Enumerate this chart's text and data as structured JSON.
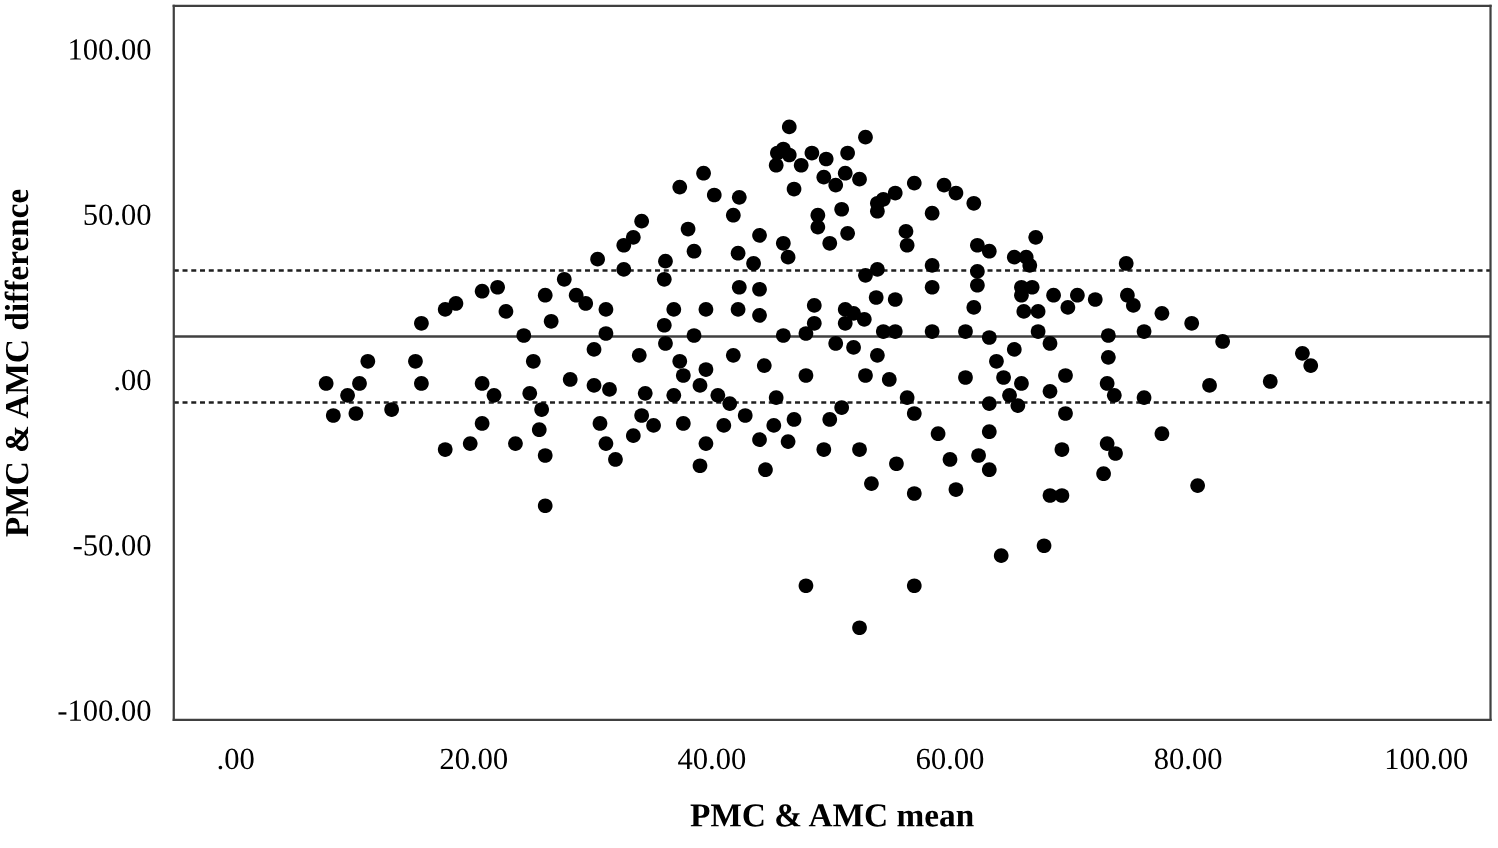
{
  "chart_data": {
    "type": "scatter",
    "xlabel": "PMC & AMC mean",
    "ylabel": "PMC & AMC difference",
    "xlim": [
      -5.2,
      105.4
    ],
    "ylim": [
      -103,
      113
    ],
    "xticks": [
      {
        "value": 0,
        "label": ".00"
      },
      {
        "value": 20,
        "label": "20.00"
      },
      {
        "value": 40,
        "label": "40.00"
      },
      {
        "value": 60,
        "label": "60.00"
      },
      {
        "value": 80,
        "label": "80.00"
      },
      {
        "value": 100,
        "label": "100.00"
      }
    ],
    "yticks": [
      {
        "value": -100,
        "label": "-100.00"
      },
      {
        "value": -50,
        "label": "-50.00"
      },
      {
        "value": 0,
        "label": ".00"
      },
      {
        "value": 50,
        "label": "50.00"
      },
      {
        "value": 100,
        "label": "100.00"
      }
    ],
    "grid": false,
    "marker": "circle",
    "ref_lines": [
      {
        "axis": "y",
        "value": 13,
        "label": null,
        "color": "#404040",
        "line_style": "solid"
      },
      {
        "axis": "y",
        "value": 33,
        "label": null,
        "color": "#202020",
        "line_style": "dotted"
      },
      {
        "axis": "y",
        "value": -7,
        "label": null,
        "color": "#202020",
        "line_style": "dotted"
      }
    ],
    "series": [
      {
        "color": "#000000",
        "x": [
          15.6,
          11.1,
          15.1,
          17.6,
          18.5,
          20.7,
          22.0,
          22.7,
          24.2,
          25.0,
          26.0,
          27.6,
          26.5,
          30.4,
          32.6,
          34.1,
          37.3,
          39.3,
          40.2,
          42.3,
          41.8,
          38.0,
          38.5,
          33.4,
          36.1,
          36.0,
          32.6,
          44.0,
          46.0,
          45.4,
          45.5,
          42.2,
          43.5,
          42.3,
          44.0,
          39.5,
          42.2,
          44.0,
          46.0,
          41.8,
          44.4,
          36.8,
          36.0,
          36.1,
          38.5,
          39.5,
          37.3,
          33.9,
          30.1,
          31.1,
          29.4,
          28.6,
          31.1,
          7.6,
          9.4,
          10.4,
          8.2,
          10.1,
          13.1,
          15.6,
          17.6,
          19.7,
          20.7,
          20.7,
          21.7,
          23.5,
          24.7,
          25.5,
          26.0,
          25.7,
          26.0,
          28.1,
          30.1,
          31.4,
          30.6,
          31.1,
          31.9,
          33.4,
          34.4,
          34.1,
          35.1,
          37.6,
          36.8,
          37.6,
          39.0,
          39.5,
          39.0,
          40.5,
          41.5,
          41.0,
          42.8,
          44.0,
          44.5,
          45.4,
          45.2,
          46.4,
          47.9,
          52.9,
          54.9,
          61.3,
          64.5,
          66.0,
          68.4,
          69.7,
          73.2,
          73.8,
          76.3,
          81.8,
          86.9,
          56.4,
          57.0,
          63.3,
          65.0,
          65.7,
          69.7,
          46.9,
          49.9,
          50.9,
          49.4,
          52.4,
          55.5,
          59.0,
          60.0,
          62.4,
          63.3,
          63.3,
          69.4,
          73.2,
          73.9,
          72.9,
          77.8,
          53.4,
          57.0,
          60.5,
          68.4,
          69.4,
          80.8,
          64.3,
          67.9,
          47.9,
          57.0,
          52.4,
          46.5,
          46.0,
          46.5,
          48.4,
          49.6,
          51.4,
          47.5,
          49.4,
          51.2,
          52.4,
          50.4,
          46.9,
          52.9,
          53.9,
          54.4,
          55.4,
          53.9,
          48.9,
          48.9,
          50.9,
          51.4,
          49.9,
          56.3,
          56.4,
          57.0,
          58.5,
          59.5,
          60.5,
          62.0,
          62.3,
          63.3,
          65.4,
          66.4,
          66.7,
          67.2,
          46.4,
          52.9,
          53.9,
          58.5,
          62.3,
          62.3,
          58.5,
          66.0,
          66.9,
          66.0,
          68.7,
          70.7,
          72.2,
          74.9,
          75.4,
          74.8,
          69.9,
          66.2,
          67.4,
          62.0,
          55.4,
          53.8,
          48.6,
          51.2,
          51.9,
          52.8,
          48.6,
          51.2,
          54.4,
          55.4,
          58.5,
          61.3,
          63.3,
          67.4,
          68.4,
          47.9,
          50.4,
          51.9,
          53.9,
          63.9,
          65.4,
          77.8,
          80.3,
          82.9,
          76.3,
          73.3,
          73.3,
          89.6,
          90.3
        ],
        "values": [
          17.0,
          5.5,
          5.5,
          21.2,
          23.0,
          26.7,
          27.9,
          20.6,
          13.3,
          5.5,
          25.5,
          30.3,
          17.6,
          36.4,
          40.6,
          47.9,
          58.2,
          62.4,
          55.8,
          55.1,
          49.7,
          45.5,
          38.8,
          43.0,
          35.8,
          30.3,
          33.3,
          43.6,
          41.2,
          64.8,
          68.5,
          38.2,
          35.1,
          27.9,
          27.3,
          21.2,
          21.2,
          19.4,
          13.3,
          7.3,
          4.2,
          21.2,
          16.4,
          10.9,
          13.3,
          3.0,
          5.5,
          7.3,
          9.1,
          21.2,
          23.0,
          25.5,
          13.9,
          -1.2,
          -4.8,
          -1.2,
          -10.9,
          -10.3,
          -9.1,
          -1.2,
          -21.2,
          -19.4,
          -13.3,
          -1.2,
          -4.8,
          -19.4,
          -4.2,
          -15.2,
          -23.0,
          -9.1,
          -38.2,
          0,
          -1.8,
          -3.0,
          -13.3,
          -19.4,
          -24.2,
          -17.0,
          -4.2,
          -10.9,
          -13.9,
          1.2,
          -4.8,
          -13.3,
          -1.8,
          -19.4,
          -26.1,
          -4.8,
          -7.3,
          -13.9,
          -10.9,
          -18.2,
          -27.3,
          -5.5,
          -13.9,
          -18.8,
          1.2,
          1.2,
          0,
          0.6,
          0.6,
          -1.2,
          -3.6,
          1.2,
          -1.2,
          -4.8,
          -5.5,
          -1.8,
          -0.6,
          -5.5,
          -10.3,
          -7.3,
          -4.8,
          -7.9,
          -10.3,
          -12.1,
          -12.1,
          -8.5,
          -21.2,
          -21.2,
          -25.5,
          -16.4,
          -24.2,
          -23.0,
          -15.8,
          -27.3,
          -21.2,
          -19.4,
          -22.4,
          -28.5,
          -16.4,
          -31.5,
          -34.5,
          -33.3,
          -35.1,
          -35.1,
          -32.1,
          -53.3,
          -50.3,
          -62.4,
          -62.4,
          -75.1,
          76.4,
          69.7,
          67.9,
          68.5,
          66.7,
          68.5,
          64.8,
          61.2,
          62.4,
          60.6,
          58.8,
          57.6,
          73.3,
          53.3,
          54.5,
          56.4,
          50.9,
          49.7,
          46.1,
          51.5,
          44.2,
          41.2,
          44.8,
          40.6,
          59.4,
          50.3,
          58.8,
          56.4,
          53.3,
          40.6,
          38.8,
          37.0,
          37.0,
          34.5,
          43.0,
          37.0,
          31.5,
          33.3,
          34.5,
          32.7,
          28.5,
          27.9,
          27.9,
          27.9,
          25.5,
          25.5,
          25.5,
          24.2,
          25.5,
          22.4,
          35.1,
          21.8,
          20.6,
          20.6,
          21.8,
          24.2,
          24.8,
          22.4,
          21.2,
          20.0,
          18.2,
          17.0,
          17.0,
          14.5,
          14.5,
          14.5,
          14.5,
          12.7,
          14.5,
          10.9,
          13.9,
          10.9,
          9.7,
          7.3,
          5.5,
          9.1,
          20.0,
          17.0,
          11.5,
          14.5,
          13.3,
          6.7,
          7.9,
          4.2
        ]
      }
    ]
  }
}
